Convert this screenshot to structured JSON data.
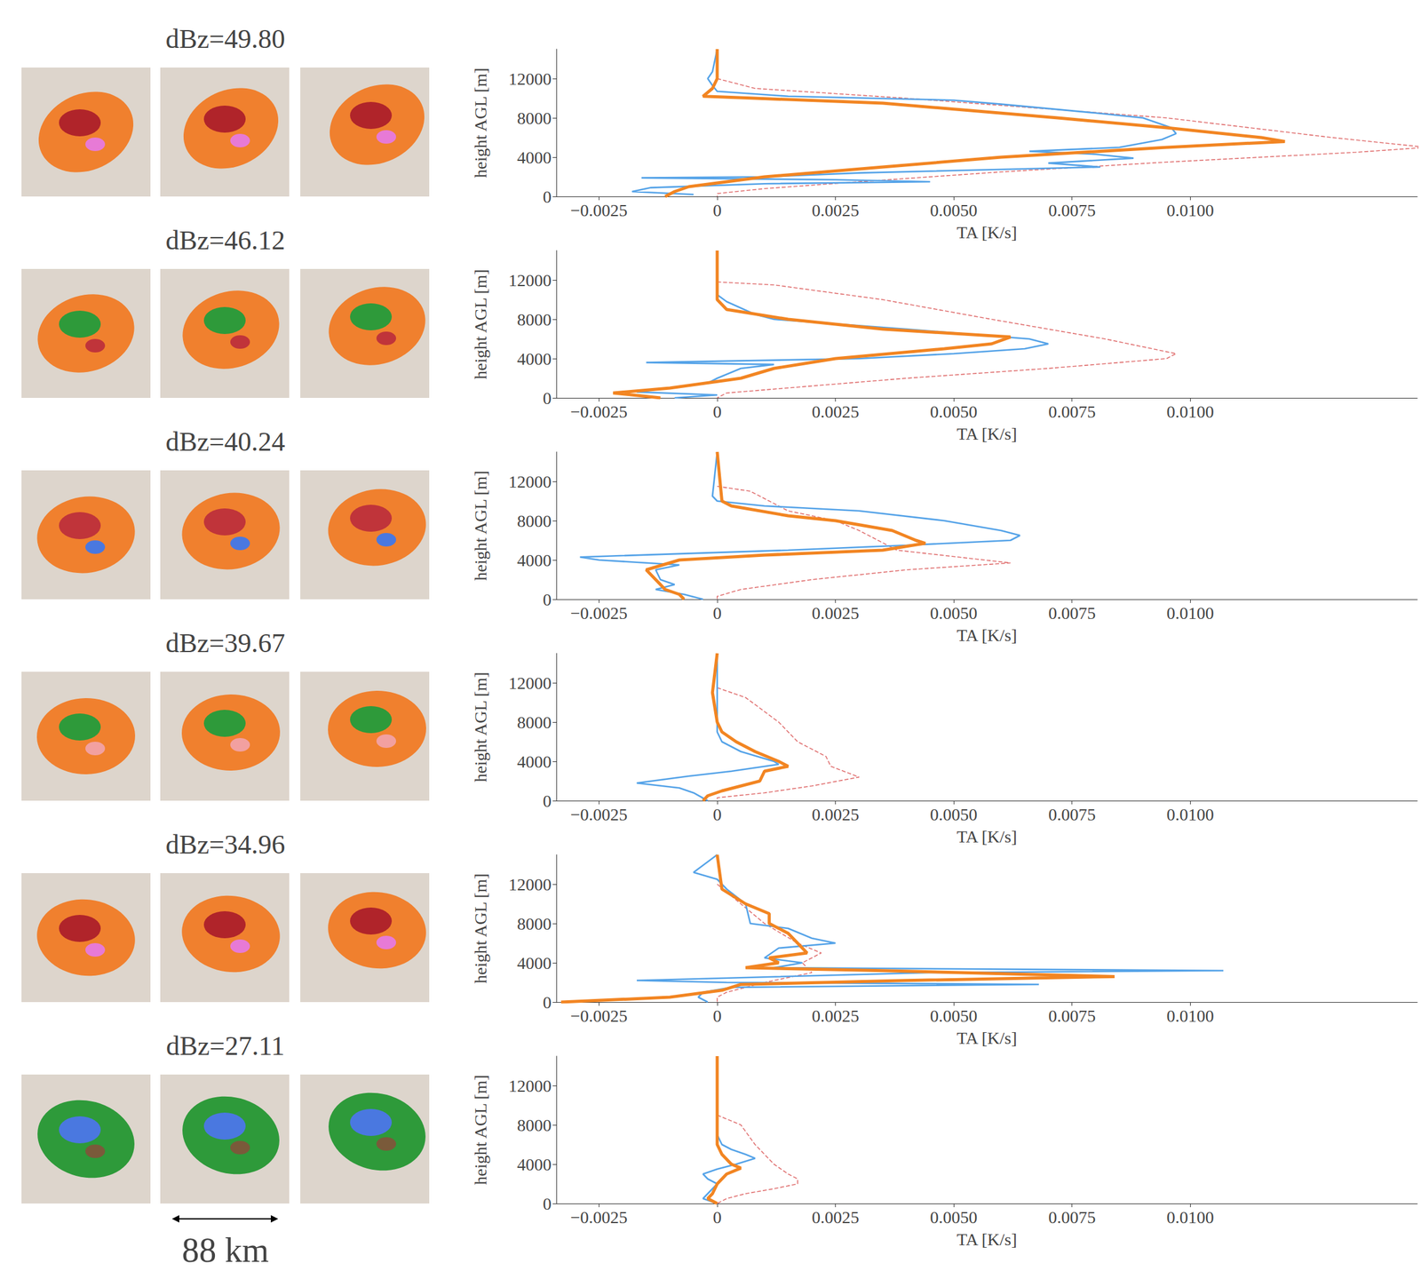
{
  "images": {
    "scale_label": "88 km",
    "rows": [
      {
        "title": "dBz=49.80",
        "colors": [
          "#f0802e",
          "#b0242a",
          "#e77ad6"
        ]
      },
      {
        "title": "dBz=46.12",
        "colors": [
          "#f0802e",
          "#2e9a3a",
          "#c0343a"
        ]
      },
      {
        "title": "dBz=40.24",
        "colors": [
          "#f0802e",
          "#c0343a",
          "#4a78e0"
        ]
      },
      {
        "title": "dBz=39.67",
        "colors": [
          "#f0802e",
          "#2e9a3a",
          "#f2a0a0"
        ]
      },
      {
        "title": "dBz=34.96",
        "colors": [
          "#f0802e",
          "#b0242a",
          "#e77ad6"
        ]
      },
      {
        "title": "dBz=27.11",
        "colors": [
          "#2e9a3a",
          "#4a78e0",
          "#7a5a3a"
        ]
      }
    ]
  },
  "chart_data": [
    {
      "type": "line",
      "x_label": "TA [K/s]",
      "y_label": "height AGL [m]",
      "xlim": [
        -0.0034,
        0.0148
      ],
      "ylim": [
        0,
        15000
      ],
      "xticks": [
        {
          "value": -0.0025,
          "label": "−0.0025"
        },
        0,
        0.0025,
        {
          "value": 0.005,
          "label": "0.0050"
        },
        0.0075,
        {
          "value": 0.01,
          "label": "0.0100"
        }
      ],
      "yticks": [
        0,
        4000,
        8000,
        12000
      ],
      "grid": false,
      "series": [
        {
          "color": "#e07070",
          "line_style": "dashed",
          "y": [
            12000,
            11000,
            10000,
            8000,
            6000,
            5000,
            4500,
            3500,
            2500,
            1500,
            800,
            300,
            0
          ],
          "x": [
            0,
            0.0008,
            0.004,
            0.0095,
            0.013,
            0.015,
            0.0135,
            0.0095,
            0.006,
            0.003,
            0.001,
            0,
            0
          ]
        },
        {
          "color": "#55a3e8",
          "line_style": "solid",
          "y": [
            15000,
            12700,
            12000,
            11300,
            10700,
            10200,
            9800,
            9400,
            8500,
            8000,
            7000,
            6400,
            5800,
            5000,
            4600,
            4300,
            3900,
            3400,
            3000,
            2400,
            2000,
            1900,
            1700,
            1500,
            1300,
            900,
            500,
            200
          ],
          "x": [
            0,
            -0.0001,
            -0.0002,
            -0.0001,
            0,
            0.0015,
            0.005,
            0.006,
            0.008,
            0.009,
            0.0096,
            0.0097,
            0.0094,
            0.0085,
            0.0066,
            0.008,
            0.0088,
            0.007,
            0.0081,
            0.003,
            0.001,
            -0.0016,
            0.0025,
            0.0045,
            0.001,
            -0.0014,
            -0.0018,
            -0.0005
          ]
        },
        {
          "color": "#f28522",
          "line_style": "thick",
          "y": [
            15000,
            12000,
            11000,
            10200,
            10000,
            9500,
            8000,
            7000,
            6000,
            5600,
            5000,
            4000,
            3000,
            2000,
            1500,
            1000,
            500,
            0
          ],
          "x": [
            0,
            0,
            -0.0001,
            -0.0003,
            0.0008,
            0.0035,
            0.0072,
            0.0095,
            0.0115,
            0.012,
            0.0095,
            0.006,
            0.0035,
            0.001,
            0.0002,
            -0.0006,
            -0.0009,
            -0.0011
          ]
        }
      ]
    },
    {
      "type": "line",
      "x_label": "TA [K/s]",
      "y_label": "height AGL [m]",
      "xlim": [
        -0.0034,
        0.0148
      ],
      "ylim": [
        0,
        15000
      ],
      "xticks": [
        {
          "value": -0.0025,
          "label": "−0.0025"
        },
        0,
        0.0025,
        {
          "value": 0.005,
          "label": "0.0050"
        },
        0.0075,
        {
          "value": 0.01,
          "label": "0.0100"
        }
      ],
      "yticks": [
        0,
        4000,
        8000,
        12000
      ],
      "grid": false,
      "series": [
        {
          "color": "#e07070",
          "line_style": "dashed",
          "y": [
            11800,
            11500,
            10000,
            8000,
            6000,
            4500,
            4000,
            3000,
            2000,
            500,
            0
          ],
          "x": [
            0,
            0.0012,
            0.0035,
            0.0058,
            0.0082,
            0.0097,
            0.0095,
            0.007,
            0.004,
            0.0002,
            0
          ]
        },
        {
          "color": "#55a3e8",
          "line_style": "solid",
          "y": [
            15000,
            10500,
            9800,
            8500,
            8000,
            7000,
            6000,
            5500,
            5000,
            4500,
            4000,
            3600,
            3400,
            3000,
            2000,
            1500,
            600,
            300,
            0
          ],
          "x": [
            0,
            0,
            0.0002,
            0.0008,
            0.0012,
            0.004,
            0.0066,
            0.007,
            0.0065,
            0.005,
            0.003,
            -0.0015,
            0.0012,
            0.0005,
            0,
            -0.0002,
            -0.0017,
            0,
            -0.0009
          ]
        },
        {
          "color": "#f28522",
          "line_style": "thick",
          "y": [
            15000,
            10000,
            9000,
            8000,
            7000,
            6200,
            5500,
            5000,
            4000,
            3000,
            2000,
            1000,
            500,
            0
          ],
          "x": [
            0,
            0,
            0.0002,
            0.0015,
            0.0035,
            0.0062,
            0.0058,
            0.0048,
            0.0025,
            0.0012,
            0.0005,
            -0.001,
            -0.0022,
            -0.0012
          ]
        }
      ]
    },
    {
      "type": "line",
      "x_label": "TA [K/s]",
      "y_label": "height AGL [m]",
      "xlim": [
        -0.0034,
        0.0148
      ],
      "ylim": [
        0,
        15000
      ],
      "xticks": [
        {
          "value": -0.0025,
          "label": "−0.0025"
        },
        0,
        0.0025,
        {
          "value": 0.005,
          "label": "0.0050"
        },
        0.0075,
        {
          "value": 0.01,
          "label": "0.0100"
        }
      ],
      "yticks": [
        0,
        4000,
        8000,
        12000
      ],
      "grid": false,
      "series": [
        {
          "color": "#e07070",
          "line_style": "dashed",
          "y": [
            11500,
            11000,
            9000,
            8000,
            7000,
            5000,
            3700,
            3000,
            2000,
            1000,
            300,
            0
          ],
          "x": [
            0,
            0.0007,
            0.0015,
            0.0025,
            0.003,
            0.0038,
            0.0062,
            0.004,
            0.002,
            0.0005,
            0,
            0
          ]
        },
        {
          "color": "#55a3e8",
          "line_style": "solid",
          "y": [
            15000,
            10500,
            10000,
            9500,
            9000,
            8000,
            7000,
            6500,
            6000,
            5500,
            5000,
            4300,
            4000,
            3500,
            3000,
            2000,
            1500,
            1000,
            500,
            0
          ],
          "x": [
            0,
            -0.0001,
            0,
            0.001,
            0.003,
            0.0048,
            0.006,
            0.0064,
            0.0062,
            0.004,
            0.0015,
            -0.0029,
            -0.0025,
            -0.0008,
            -0.0013,
            -0.0012,
            -0.0009,
            -0.0013,
            -0.0007,
            -0.0003
          ]
        },
        {
          "color": "#f28522",
          "line_style": "thick",
          "y": [
            15000,
            10000,
            9500,
            8500,
            8000,
            7000,
            6000,
            5700,
            5000,
            4500,
            4000,
            3000,
            2000,
            1000,
            500,
            0
          ],
          "x": [
            0,
            0.0001,
            0.0003,
            0.0015,
            0.0025,
            0.0037,
            0.0042,
            0.0044,
            0.0035,
            0.001,
            -0.0008,
            -0.0015,
            -0.0013,
            -0.0011,
            -0.0008,
            -0.0007
          ]
        }
      ]
    },
    {
      "type": "line",
      "x_label": "TA [K/s]",
      "y_label": "height AGL [m]",
      "xlim": [
        -0.0034,
        0.0148
      ],
      "ylim": [
        0,
        15000
      ],
      "xticks": [
        {
          "value": -0.0025,
          "label": "−0.0025"
        },
        0,
        0.0025,
        {
          "value": 0.005,
          "label": "0.0050"
        },
        0.0075,
        {
          "value": 0.01,
          "label": "0.0100"
        }
      ],
      "yticks": [
        0,
        4000,
        8000,
        12000
      ],
      "grid": false,
      "series": [
        {
          "color": "#e07070",
          "line_style": "dashed",
          "y": [
            11500,
            10500,
            8000,
            6000,
            4500,
            3500,
            2400,
            1500,
            800,
            300,
            0
          ],
          "x": [
            0,
            0.0006,
            0.0013,
            0.0017,
            0.0023,
            0.0024,
            0.003,
            0.002,
            0.001,
            0,
            0
          ]
        },
        {
          "color": "#55a3e8",
          "line_style": "solid",
          "y": [
            15000,
            7000,
            6000,
            5000,
            4000,
            3700,
            3000,
            2500,
            1800,
            1300,
            800,
            0
          ],
          "x": [
            0,
            0,
            0.0001,
            0.0005,
            0.0012,
            0.0013,
            0.0003,
            -0.0006,
            -0.0017,
            -0.0008,
            -0.0005,
            -0.0002
          ]
        },
        {
          "color": "#f28522",
          "line_style": "thick",
          "y": [
            15000,
            11000,
            8000,
            7000,
            6000,
            5000,
            4000,
            3500,
            3000,
            2000,
            1000,
            500,
            0
          ],
          "x": [
            0,
            -0.0001,
            0,
            0.0001,
            0.0004,
            0.0008,
            0.0013,
            0.0015,
            0.001,
            0.0009,
            0.0001,
            -0.0002,
            -0.0003
          ]
        }
      ]
    },
    {
      "type": "line",
      "x_label": "TA [K/s]",
      "y_label": "height AGL [m]",
      "xlim": [
        -0.0034,
        0.0148
      ],
      "ylim": [
        0,
        15000
      ],
      "xticks": [
        {
          "value": -0.0025,
          "label": "−0.0025"
        },
        0,
        0.0025,
        {
          "value": 0.005,
          "label": "0.0050"
        },
        0.0075,
        {
          "value": 0.01,
          "label": "0.0100"
        }
      ],
      "yticks": [
        0,
        4000,
        8000,
        12000
      ],
      "grid": false,
      "series": [
        {
          "color": "#e07070",
          "line_style": "dashed",
          "y": [
            12000,
            10000,
            8000,
            6000,
            5000,
            4000,
            3000,
            2000,
            1000,
            500,
            0
          ],
          "x": [
            0,
            0.0005,
            0.001,
            0.0017,
            0.0022,
            0.0018,
            0.002,
            0.001,
            0.0002,
            0,
            0
          ]
        },
        {
          "color": "#55a3e8",
          "line_style": "solid",
          "y": [
            15000,
            13200,
            12500,
            11500,
            10000,
            8000,
            7500,
            6500,
            6000,
            5500,
            4500,
            4000,
            3500,
            3200,
            3000,
            2200,
            2000,
            1800,
            1500,
            1000,
            500,
            0
          ],
          "x": [
            0,
            -0.0005,
            0,
            0.0002,
            0.0006,
            0.0007,
            0.0015,
            0.002,
            0.0025,
            0.0013,
            0.001,
            0.0018,
            0.0012,
            0.0107,
            0.0045,
            -0.0017,
            0.0002,
            0.0068,
            0.0003,
            -0.0003,
            -0.0004,
            -0.0002
          ]
        },
        {
          "color": "#f28522",
          "line_style": "thick",
          "y": [
            15000,
            11500,
            10000,
            9000,
            8000,
            7000,
            6000,
            5000,
            4500,
            4000,
            3500,
            3200,
            2600,
            2200,
            1800,
            1200,
            500,
            0
          ],
          "x": [
            0,
            0.0001,
            0.0006,
            0.0011,
            0.0011,
            0.0015,
            0.0017,
            0.0019,
            0.0011,
            0.0013,
            0.0006,
            0.0035,
            0.0084,
            0.004,
            0.0005,
            0.0001,
            -0.001,
            -0.0033
          ]
        }
      ]
    },
    {
      "type": "line",
      "x_label": "TA [K/s]",
      "y_label": "height AGL [m]",
      "xlim": [
        -0.0034,
        0.0148
      ],
      "ylim": [
        0,
        15000
      ],
      "xticks": [
        {
          "value": -0.0025,
          "label": "−0.0025"
        },
        0,
        0.0025,
        {
          "value": 0.005,
          "label": "0.0050"
        },
        0.0075,
        {
          "value": 0.01,
          "label": "0.0100"
        }
      ],
      "yticks": [
        0,
        4000,
        8000,
        12000
      ],
      "grid": false,
      "series": [
        {
          "color": "#e07070",
          "line_style": "dashed",
          "y": [
            9000,
            8000,
            6000,
            5000,
            4000,
            3000,
            2500,
            2000,
            1500,
            1000,
            500,
            0
          ],
          "x": [
            0,
            0.0005,
            0.0008,
            0.001,
            0.0012,
            0.0015,
            0.0017,
            0.0017,
            0.0012,
            0.0006,
            0.0002,
            0
          ]
        },
        {
          "color": "#55a3e8",
          "line_style": "solid",
          "y": [
            15000,
            7000,
            6000,
            5500,
            5000,
            4600,
            4000,
            3500,
            3000,
            2500,
            2000,
            1000,
            500,
            0
          ],
          "x": [
            0,
            0,
            0.0001,
            0.0003,
            0.0006,
            0.0008,
            0.0004,
            0,
            -0.0003,
            -0.0002,
            0,
            -0.0002,
            -0.0003,
            0
          ]
        },
        {
          "color": "#f28522",
          "line_style": "thick",
          "y": [
            15000,
            6000,
            5000,
            4500,
            4000,
            3600,
            3000,
            2000,
            1000,
            500,
            0
          ],
          "x": [
            0,
            0,
            0.0001,
            0.0002,
            0.0003,
            0.0005,
            0.0002,
            0,
            -0.0001,
            -0.0002,
            0
          ]
        }
      ]
    }
  ]
}
